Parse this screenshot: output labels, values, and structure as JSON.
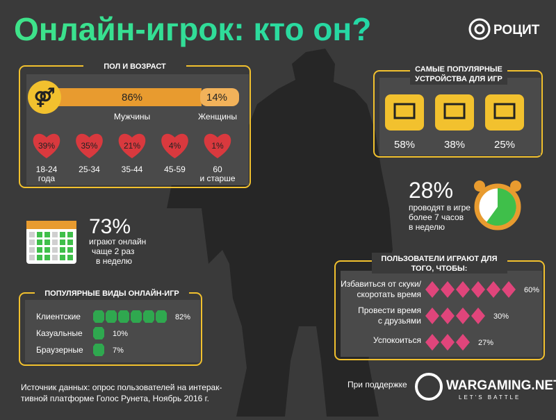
{
  "header": {
    "title": "Онлайн-игрок: кто он?",
    "logo": "РОЦИТ"
  },
  "gender_age": {
    "title": "ПОЛ И ВОЗРАСТ",
    "male_value": "86%",
    "male_label": "Мужчины",
    "female_value": "14%",
    "female_label": "Женщины",
    "ages": [
      {
        "value": "39%",
        "label": [
          "18-24",
          "года"
        ]
      },
      {
        "value": "35%",
        "label": [
          "25-34"
        ]
      },
      {
        "value": "21%",
        "label": [
          "35-44"
        ]
      },
      {
        "value": "4%",
        "label": [
          "45-59"
        ]
      },
      {
        "value": "1%",
        "label": [
          "60",
          "и старше"
        ]
      }
    ]
  },
  "devices": {
    "title": [
      "САМЫЕ ПОПУЛЯРНЫЕ",
      "УСТРОЙСТВА ДЛЯ ИГР"
    ],
    "values": [
      "58%",
      "38%",
      "25%"
    ]
  },
  "time": {
    "value": "28%",
    "text": [
      "проводят в игре",
      "более 7 часов",
      "в неделю"
    ]
  },
  "frequency": {
    "value": "73%",
    "text": [
      "играют онлайн",
      "чаще 2 раз",
      "в неделю"
    ]
  },
  "reasons": {
    "title": [
      "ПОЛЬЗОВАТЕЛИ ИГРАЮТ ДЛЯ",
      "ТОГО, ЧТОБЫ:"
    ],
    "items": [
      {
        "label": [
          "Избавиться от скуки/",
          "скоротать время"
        ],
        "value": "60%"
      },
      {
        "label": [
          "Провести время",
          "с друзьями"
        ],
        "value": "30%"
      },
      {
        "label": [
          "Успокоиться"
        ],
        "value": "27%"
      }
    ]
  },
  "game_types": {
    "title": "ПОПУЛЯРНЫЕ ВИДЫ ОНЛАЙН-ИГР",
    "items": [
      {
        "label": "Клиентские",
        "value": "82%"
      },
      {
        "label": "Казуальные",
        "value": "10%"
      },
      {
        "label": "Браузерные",
        "value": "7%"
      }
    ]
  },
  "source": [
    "Источник данных: опрос пользователей на интерак-",
    "тивной платформе Голос Рунета, Ноябрь 2016 г."
  ],
  "sponsor": {
    "text": "При поддержке",
    "brand": "WARGAMING.NET",
    "slogan": "LET'S BATTLE"
  }
}
